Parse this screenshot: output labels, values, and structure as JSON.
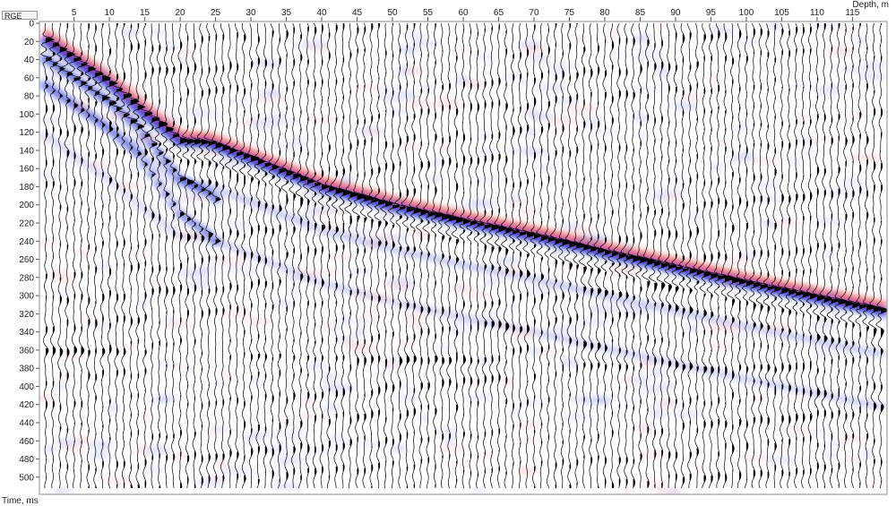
{
  "header": {
    "corner_label": "RGE",
    "x_unit_label": "Depth, m",
    "y_unit_label": "Time, ms"
  },
  "chart_data": {
    "type": "wiggle",
    "x_axis": {
      "name": "Depth, m",
      "ticks": [
        5,
        10,
        15,
        20,
        25,
        30,
        35,
        40,
        45,
        50,
        55,
        60,
        65,
        70,
        75,
        80,
        85,
        90,
        95,
        100,
        105,
        110,
        115
      ],
      "range": [
        1,
        119
      ]
    },
    "y_axis": {
      "name": "Time, ms",
      "ticks": [
        0,
        20,
        40,
        60,
        80,
        100,
        120,
        140,
        160,
        180,
        200,
        220,
        240,
        260,
        280,
        300,
        320,
        340,
        360,
        380,
        400,
        420,
        440,
        460,
        480,
        500
      ],
      "range": [
        0,
        512
      ]
    },
    "traces": 119,
    "first_arrival_picks": {
      "depth_m": [
        1,
        10,
        15,
        20,
        24,
        30,
        40,
        50,
        60,
        70,
        80,
        90,
        100,
        110,
        119
      ],
      "time_ms": [
        14,
        62,
        95,
        125,
        127,
        145,
        176,
        197,
        214,
        230,
        248,
        265,
        282,
        298,
        312
      ]
    },
    "colors": {
      "positive_fill": "#000000",
      "positive_halo": "#e02020",
      "negative_fill": "#1f2fd0",
      "trace_line": "#000000",
      "background": "#ffffff"
    }
  }
}
